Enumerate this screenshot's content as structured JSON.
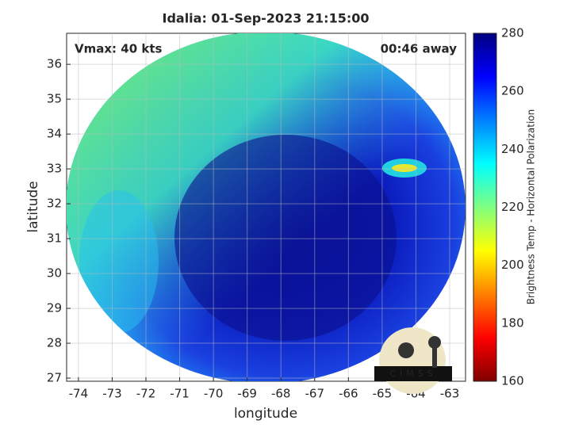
{
  "map": {
    "title": "Idalia: 01-Sep-2023 21:15:00",
    "annotations": {
      "left": "Vmax: 40 kts",
      "right": "00:46 away"
    },
    "xlabel": "longitude",
    "ylabel": "latitude",
    "xlim": [
      -74.35,
      -62.53
    ],
    "ylim": [
      26.91,
      36.89
    ],
    "xticks": [
      -74,
      -73,
      -72,
      -71,
      -70,
      -69,
      -68,
      -67,
      -66,
      -65,
      -64,
      -63
    ],
    "yticks": [
      27,
      28,
      29,
      30,
      31,
      32,
      33,
      34,
      35,
      36
    ],
    "grid": true,
    "colorbar": {
      "label": "Brightness Temp - Horizontal Polarization",
      "lim": [
        160,
        280
      ],
      "ticks": [
        160,
        180,
        200,
        220,
        240,
        260,
        280
      ]
    },
    "logo": "CIMSS"
  }
}
